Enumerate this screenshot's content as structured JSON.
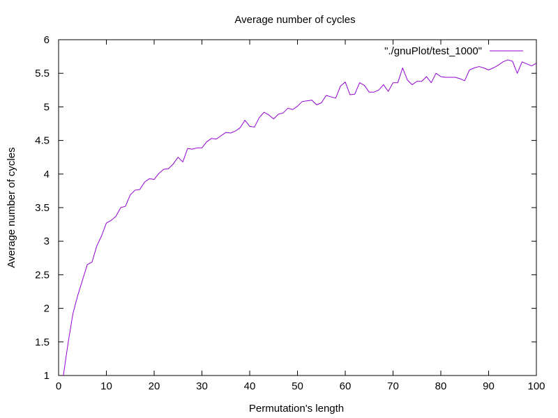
{
  "chart_data": {
    "type": "line",
    "title": "Average number of cycles",
    "xlabel": "Permutation's length",
    "ylabel": "Average number of cycles",
    "xlim": [
      0,
      100
    ],
    "ylim": [
      1,
      6
    ],
    "xticks": [
      "0",
      "10",
      "20",
      "30",
      "40",
      "50",
      "60",
      "70",
      "80",
      "90",
      "100"
    ],
    "yticks": [
      "1",
      "1.5",
      "2",
      "2.5",
      "3",
      "3.5",
      "4",
      "4.5",
      "5",
      "5.5",
      "6"
    ],
    "grid": false,
    "legend_position": "top-right",
    "series": [
      {
        "name": "\"./gnuPlot/test_1000\"",
        "color": "#9400d3",
        "x": [
          1,
          2,
          3,
          4,
          5,
          6,
          7,
          8,
          9,
          10,
          11,
          12,
          13,
          14,
          15,
          16,
          17,
          18,
          19,
          20,
          21,
          22,
          23,
          24,
          25,
          26,
          27,
          28,
          29,
          30,
          31,
          32,
          33,
          34,
          35,
          36,
          37,
          38,
          39,
          40,
          41,
          42,
          43,
          44,
          45,
          46,
          47,
          48,
          49,
          50,
          51,
          52,
          53,
          54,
          55,
          56,
          57,
          58,
          59,
          60,
          61,
          62,
          63,
          64,
          65,
          66,
          67,
          68,
          69,
          70,
          71,
          72,
          73,
          74,
          75,
          76,
          77,
          78,
          79,
          80,
          81,
          82,
          83,
          84,
          85,
          86,
          87,
          88,
          89,
          90,
          91,
          92,
          93,
          94,
          95,
          96,
          97,
          98,
          99,
          100
        ],
        "y": [
          1.0,
          1.49,
          1.92,
          2.19,
          2.42,
          2.65,
          2.69,
          2.93,
          3.08,
          3.27,
          3.31,
          3.37,
          3.5,
          3.52,
          3.69,
          3.76,
          3.77,
          3.88,
          3.93,
          3.92,
          4.01,
          4.07,
          4.08,
          4.15,
          4.25,
          4.18,
          4.38,
          4.37,
          4.39,
          4.39,
          4.48,
          4.53,
          4.52,
          4.57,
          4.62,
          4.61,
          4.64,
          4.69,
          4.8,
          4.71,
          4.7,
          4.84,
          4.92,
          4.88,
          4.82,
          4.89,
          4.91,
          4.98,
          4.96,
          5.01,
          5.08,
          5.09,
          5.1,
          5.03,
          5.06,
          5.17,
          5.15,
          5.13,
          5.31,
          5.37,
          5.18,
          5.19,
          5.36,
          5.32,
          5.22,
          5.22,
          5.25,
          5.33,
          5.23,
          5.36,
          5.36,
          5.58,
          5.4,
          5.33,
          5.38,
          5.38,
          5.45,
          5.36,
          5.5,
          5.45,
          5.44,
          5.44,
          5.44,
          5.42,
          5.39,
          5.55,
          5.58,
          5.6,
          5.58,
          5.55,
          5.58,
          5.62,
          5.67,
          5.7,
          5.68,
          5.5,
          5.67,
          5.64,
          5.61,
          5.65
        ]
      }
    ]
  }
}
